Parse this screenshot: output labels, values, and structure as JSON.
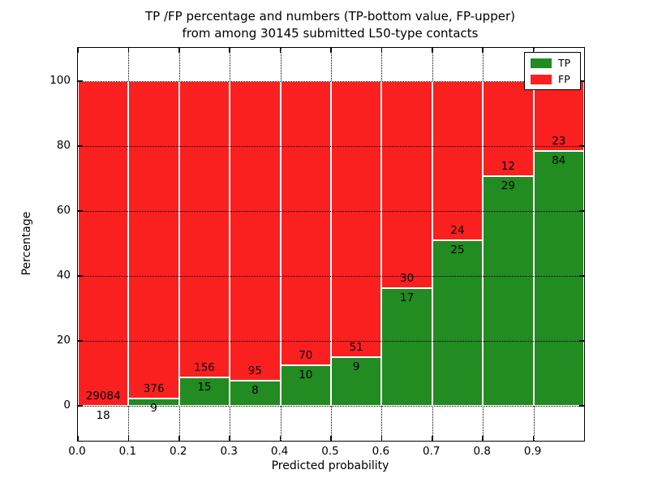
{
  "title": {
    "line1": "TP /FP percentage and numbers (TP-bottom value, FP-upper)",
    "line2": "from among 30145 submitted L50-type contacts"
  },
  "axes": {
    "xlabel": "Predicted probability",
    "ylabel": "Percentage",
    "xtick_labels": [
      "0.0",
      "0.1",
      "0.2",
      "0.3",
      "0.4",
      "0.5",
      "0.6",
      "0.7",
      "0.8",
      "0.9"
    ],
    "ytick_labels": [
      "0",
      "20",
      "40",
      "60",
      "80",
      "100"
    ]
  },
  "legend": {
    "items": [
      {
        "label": "TP",
        "color": "#228b22"
      },
      {
        "label": "FP",
        "color": "#fa2020"
      }
    ]
  },
  "chart_data": {
    "type": "bar",
    "stacked": true,
    "title": "TP /FP percentage and numbers (TP-bottom value, FP-upper) from among 30145 submitted L50-type contacts",
    "xlabel": "Predicted probability",
    "ylabel": "Percentage",
    "total_submitted": 30145,
    "bins": [
      0.0,
      0.1,
      0.2,
      0.3,
      0.4,
      0.5,
      0.6,
      0.7,
      0.8,
      0.9
    ],
    "bin_width": 0.1,
    "series": [
      {
        "name": "TP",
        "color": "#228b22",
        "counts": [
          18,
          9,
          15,
          8,
          10,
          9,
          17,
          25,
          29,
          84
        ]
      },
      {
        "name": "FP",
        "color": "#fa2020",
        "counts": [
          29084,
          376,
          156,
          95,
          70,
          51,
          30,
          24,
          12,
          23
        ]
      }
    ],
    "tp_percent": [
      0.06,
      2.34,
      8.77,
      7.77,
      12.5,
      15.0,
      36.17,
      51.02,
      70.73,
      78.5
    ],
    "xlim": [
      0.0,
      1.0
    ],
    "ylim": [
      -10.75,
      110.25
    ],
    "xticks": [
      0.0,
      0.1,
      0.2,
      0.3,
      0.4,
      0.5,
      0.6,
      0.7,
      0.8,
      0.9
    ],
    "yticks": [
      0,
      20,
      40,
      60,
      80,
      100
    ],
    "grid": true,
    "legend_position": "upper right"
  }
}
